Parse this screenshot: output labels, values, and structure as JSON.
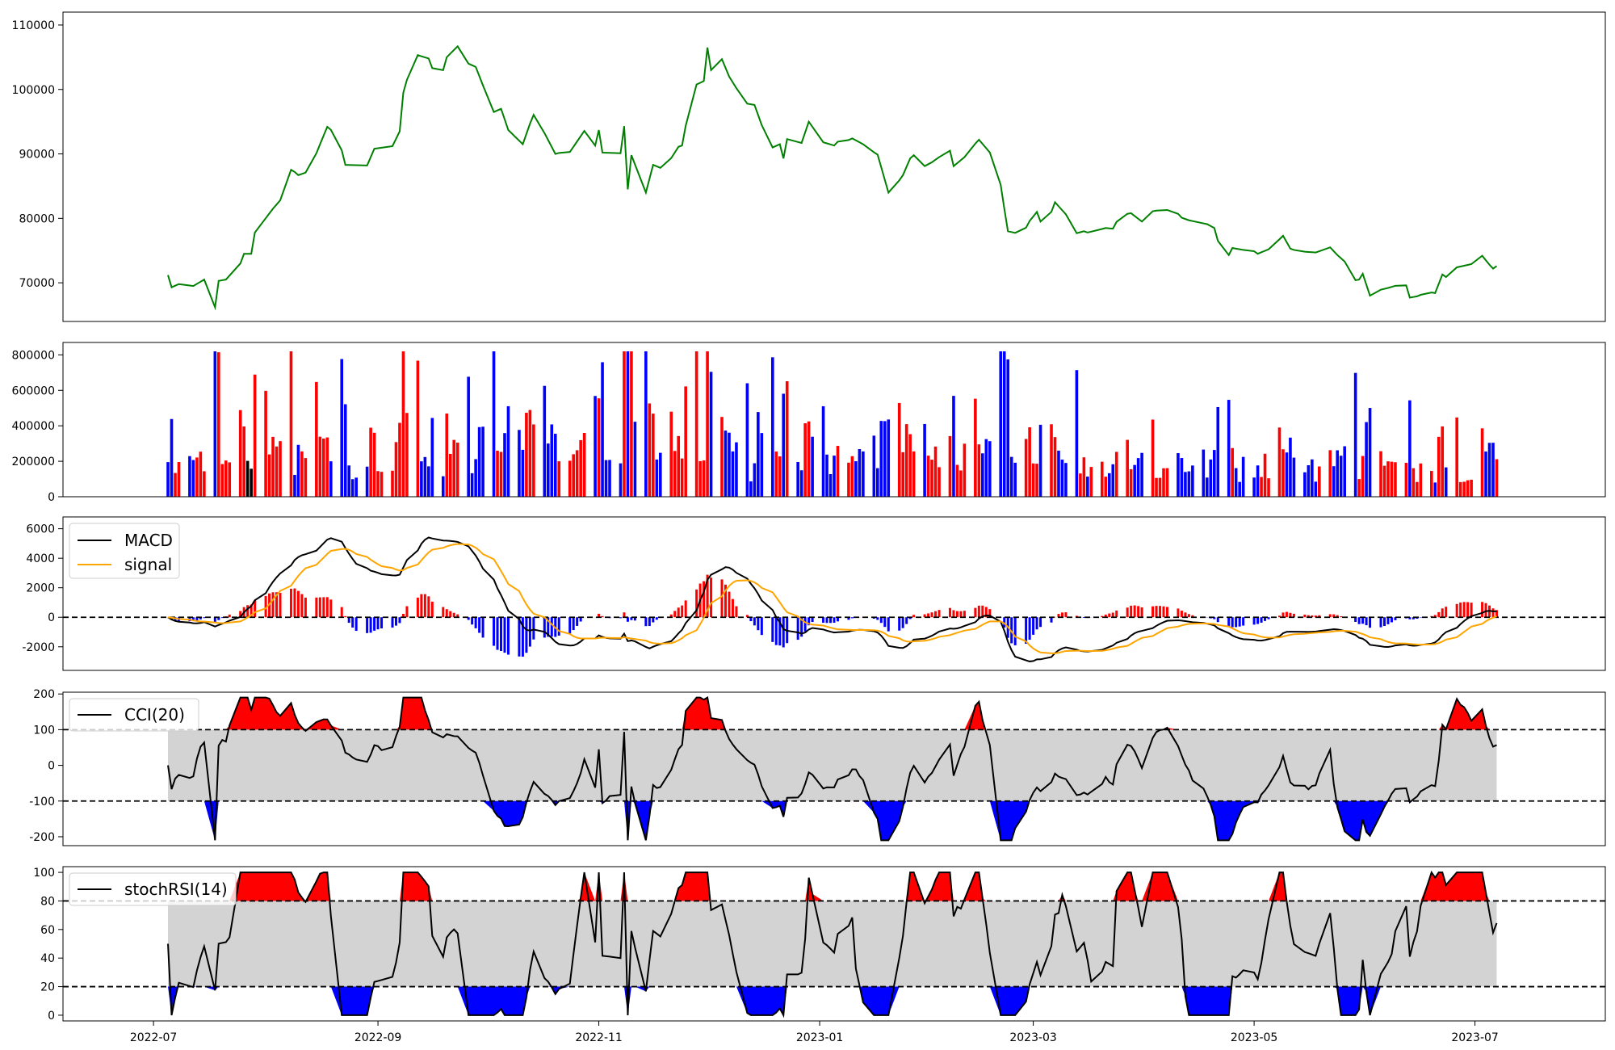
{
  "colors": {
    "price": "#008000",
    "up": "#ff0000",
    "down": "#0000ff",
    "flat": "#000000",
    "macd": "#000000",
    "signal": "#ffa500",
    "band": "#d3d3d3",
    "over": "#ff0000",
    "under": "#0000ff"
  },
  "chart_data": [
    {
      "type": "line",
      "panel": "price",
      "x_start": "2022-07-05",
      "x_end": "2023-07-07",
      "ylim": [
        64000,
        112000
      ],
      "yticks": [
        70000,
        80000,
        90000,
        100000,
        110000
      ],
      "anchors": [
        [
          "2022-07-05",
          71200
        ],
        [
          "2022-07-06",
          69300
        ],
        [
          "2022-07-08",
          69800
        ],
        [
          "2022-07-12",
          69500
        ],
        [
          "2022-07-15",
          70500
        ],
        [
          "2022-07-16",
          67400
        ],
        [
          "2022-07-18",
          66200
        ],
        [
          "2022-07-19",
          70300
        ],
        [
          "2022-07-21",
          70500
        ],
        [
          "2022-07-25",
          73000
        ],
        [
          "2022-07-26",
          74500
        ],
        [
          "2022-07-28",
          74500
        ],
        [
          "2022-07-29",
          77800
        ],
        [
          "2022-08-03",
          81500
        ],
        [
          "2022-08-05",
          82800
        ],
        [
          "2022-08-06",
          88200
        ],
        [
          "2022-08-09",
          87200
        ],
        [
          "2022-08-10",
          86700
        ],
        [
          "2022-08-13",
          87300
        ],
        [
          "2022-08-16",
          91500
        ],
        [
          "2022-08-18",
          94200
        ],
        [
          "2022-08-21",
          92800
        ],
        [
          "2022-08-23",
          88300
        ],
        [
          "2022-08-29",
          88200
        ],
        [
          "2022-08-31",
          90800
        ],
        [
          "2022-09-05",
          91200
        ],
        [
          "2022-09-07",
          93500
        ],
        [
          "2022-09-08",
          99500
        ],
        [
          "2022-09-11",
          105500
        ],
        [
          "2022-09-15",
          104800
        ],
        [
          "2022-09-16",
          103300
        ],
        [
          "2022-09-18",
          105900
        ],
        [
          "2022-09-19",
          103000
        ],
        [
          "2022-09-20",
          105000
        ],
        [
          "2022-09-23",
          106700
        ],
        [
          "2022-09-25",
          109000
        ],
        [
          "2022-09-26",
          104000
        ],
        [
          "2022-09-28",
          103500
        ],
        [
          "2022-10-01",
          99200
        ],
        [
          "2022-10-03",
          96500
        ],
        [
          "2022-10-05",
          97000
        ],
        [
          "2022-10-07",
          93700
        ],
        [
          "2022-10-11",
          91500
        ],
        [
          "2022-10-13",
          94700
        ],
        [
          "2022-10-15",
          97400
        ],
        [
          "2022-10-16",
          94300
        ],
        [
          "2022-10-20",
          90000
        ],
        [
          "2022-10-22",
          90300
        ],
        [
          "2022-10-23",
          91000
        ],
        [
          "2022-10-24",
          90300
        ],
        [
          "2022-10-30",
          95200
        ],
        [
          "2022-10-31",
          91300
        ],
        [
          "2022-11-01",
          93700
        ],
        [
          "2022-11-02",
          90200
        ],
        [
          "2022-11-07",
          90100
        ],
        [
          "2022-11-08",
          94300
        ],
        [
          "2022-11-09",
          84500
        ],
        [
          "2022-11-10",
          89800
        ],
        [
          "2022-11-14",
          84000
        ],
        [
          "2022-11-16",
          88300
        ],
        [
          "2022-11-19",
          87600
        ],
        [
          "2022-11-23",
          91100
        ],
        [
          "2022-11-24",
          91300
        ],
        [
          "2022-11-27",
          100500
        ],
        [
          "2022-11-30",
          101300
        ],
        [
          "2022-12-01",
          106500
        ],
        [
          "2022-12-02",
          103000
        ],
        [
          "2022-12-05",
          104700
        ],
        [
          "2022-12-07",
          102000
        ],
        [
          "2022-12-09",
          100200
        ],
        [
          "2022-12-11",
          99200
        ],
        [
          "2022-12-12",
          97800
        ],
        [
          "2022-12-14",
          97600
        ],
        [
          "2022-12-17",
          92900
        ],
        [
          "2022-12-19",
          91000
        ],
        [
          "2022-12-21",
          91500
        ],
        [
          "2022-12-22",
          89300
        ],
        [
          "2022-12-23",
          92300
        ],
        [
          "2022-12-27",
          91700
        ],
        [
          "2022-12-29",
          95000
        ],
        [
          "2023-01-02",
          91800
        ],
        [
          "2023-01-05",
          91300
        ],
        [
          "2023-01-07",
          92500
        ],
        [
          "2023-01-08",
          91900
        ],
        [
          "2023-01-10",
          92400
        ],
        [
          "2023-01-13",
          91500
        ],
        [
          "2023-01-15",
          90600
        ],
        [
          "2023-01-17",
          89900
        ],
        [
          "2023-01-20",
          84000
        ],
        [
          "2023-01-23",
          85900
        ],
        [
          "2023-01-24",
          86700
        ],
        [
          "2023-01-26",
          89300
        ],
        [
          "2023-01-28",
          90300
        ],
        [
          "2023-01-29",
          87800
        ],
        [
          "2023-02-01",
          88700
        ],
        [
          "2023-02-03",
          89500
        ],
        [
          "2023-02-06",
          90500
        ],
        [
          "2023-02-07",
          88100
        ],
        [
          "2023-02-10",
          89500
        ],
        [
          "2023-02-12",
          93200
        ],
        [
          "2023-02-13",
          91600
        ],
        [
          "2023-02-14",
          92200
        ],
        [
          "2023-02-19",
          88900
        ],
        [
          "2023-02-21",
          81500
        ],
        [
          "2023-02-22",
          78000
        ],
        [
          "2023-02-26",
          77500
        ],
        [
          "2023-02-28",
          79600
        ],
        [
          "2023-03-02",
          81000
        ],
        [
          "2023-03-03",
          79500
        ],
        [
          "2023-03-04",
          81500
        ],
        [
          "2023-03-06",
          81000
        ],
        [
          "2023-03-07",
          82500
        ],
        [
          "2023-03-11",
          80000
        ],
        [
          "2023-03-12",
          79600
        ],
        [
          "2023-03-13",
          77700
        ],
        [
          "2023-03-15",
          78000
        ],
        [
          "2023-03-16",
          77800
        ],
        [
          "2023-03-19",
          78200
        ],
        [
          "2023-03-21",
          78500
        ],
        [
          "2023-03-23",
          78400
        ],
        [
          "2023-03-25",
          80500
        ],
        [
          "2023-03-28",
          80800
        ],
        [
          "2023-03-31",
          79500
        ],
        [
          "2023-04-02",
          81000
        ],
        [
          "2023-04-04",
          81200
        ],
        [
          "2023-04-07",
          81300
        ],
        [
          "2023-04-09",
          80300
        ],
        [
          "2023-04-10",
          80700
        ],
        [
          "2023-04-11",
          80100
        ],
        [
          "2023-04-13",
          79700
        ],
        [
          "2023-04-18",
          79100
        ],
        [
          "2023-04-20",
          78500
        ],
        [
          "2023-04-22",
          74500
        ],
        [
          "2023-04-24",
          74300
        ],
        [
          "2023-04-25",
          75400
        ],
        [
          "2023-04-28",
          75100
        ],
        [
          "2023-05-01",
          74900
        ],
        [
          "2023-05-02",
          74500
        ],
        [
          "2023-05-05",
          75200
        ],
        [
          "2023-05-07",
          76200
        ],
        [
          "2023-05-09",
          77300
        ],
        [
          "2023-05-11",
          75300
        ],
        [
          "2023-05-13",
          74900
        ],
        [
          "2023-05-18",
          74700
        ],
        [
          "2023-05-22",
          75500
        ],
        [
          "2023-05-24",
          74300
        ],
        [
          "2023-05-26",
          73300
        ],
        [
          "2023-05-28",
          70300
        ],
        [
          "2023-05-30",
          70500
        ],
        [
          "2023-05-31",
          71400
        ],
        [
          "2023-06-02",
          68000
        ],
        [
          "2023-06-03",
          70300
        ],
        [
          "2023-06-04",
          68800
        ],
        [
          "2023-06-07",
          69200
        ],
        [
          "2023-06-10",
          69700
        ],
        [
          "2023-06-12",
          69600
        ],
        [
          "2023-06-13",
          67700
        ],
        [
          "2023-06-15",
          67900
        ],
        [
          "2023-06-18",
          68600
        ],
        [
          "2023-06-20",
          68400
        ],
        [
          "2023-06-22",
          71300
        ],
        [
          "2023-06-23",
          70900
        ],
        [
          "2023-06-25",
          71200
        ],
        [
          "2023-06-26",
          72400
        ],
        [
          "2023-06-30",
          72900
        ],
        [
          "2023-07-01",
          74300
        ],
        [
          "2023-07-02",
          74900
        ],
        [
          "2023-07-05",
          72800
        ],
        [
          "2023-07-06",
          72200
        ],
        [
          "2023-07-07",
          72600
        ]
      ]
    },
    {
      "type": "bar",
      "panel": "volume",
      "x_start": "2022-07-05",
      "x_end": "2023-07-07",
      "ylim": [
        0,
        870000
      ],
      "yticks": [
        0,
        200000,
        400000,
        600000,
        800000
      ]
    },
    {
      "type": "line",
      "panel": "macd",
      "ylim": [
        -3600,
        6800
      ],
      "yticks": [
        -2000,
        0,
        2000,
        4000,
        6000
      ],
      "legend": [
        "MACD",
        "signal"
      ],
      "legend_loc": "upper-left",
      "reference_lines": [
        0
      ]
    },
    {
      "type": "area",
      "panel": "cci",
      "ylim": [
        -225,
        205
      ],
      "yticks": [
        -200,
        -100,
        0,
        100,
        200
      ],
      "legend": [
        "CCI(20)"
      ],
      "legend_loc": "upper-left",
      "reference_lines": [
        100,
        -100
      ]
    },
    {
      "type": "area",
      "panel": "stochrsi",
      "ylim": [
        -4,
        104
      ],
      "yticks": [
        0,
        20,
        40,
        60,
        80,
        100
      ],
      "legend": [
        "stochRSI(14)"
      ],
      "legend_loc": "upper-left",
      "reference_lines": [
        80,
        20
      ]
    }
  ],
  "x_axis": {
    "ticks": [
      {
        "date": "2022-07-01",
        "label": "2022-07"
      },
      {
        "date": "2022-09-01",
        "label": "2022-09"
      },
      {
        "date": "2022-11-01",
        "label": "2022-11"
      },
      {
        "date": "2023-01-01",
        "label": "2023-01"
      },
      {
        "date": "2023-03-01",
        "label": "2023-03"
      },
      {
        "date": "2023-05-01",
        "label": "2023-05"
      },
      {
        "date": "2023-07-01",
        "label": "2023-07"
      }
    ]
  }
}
